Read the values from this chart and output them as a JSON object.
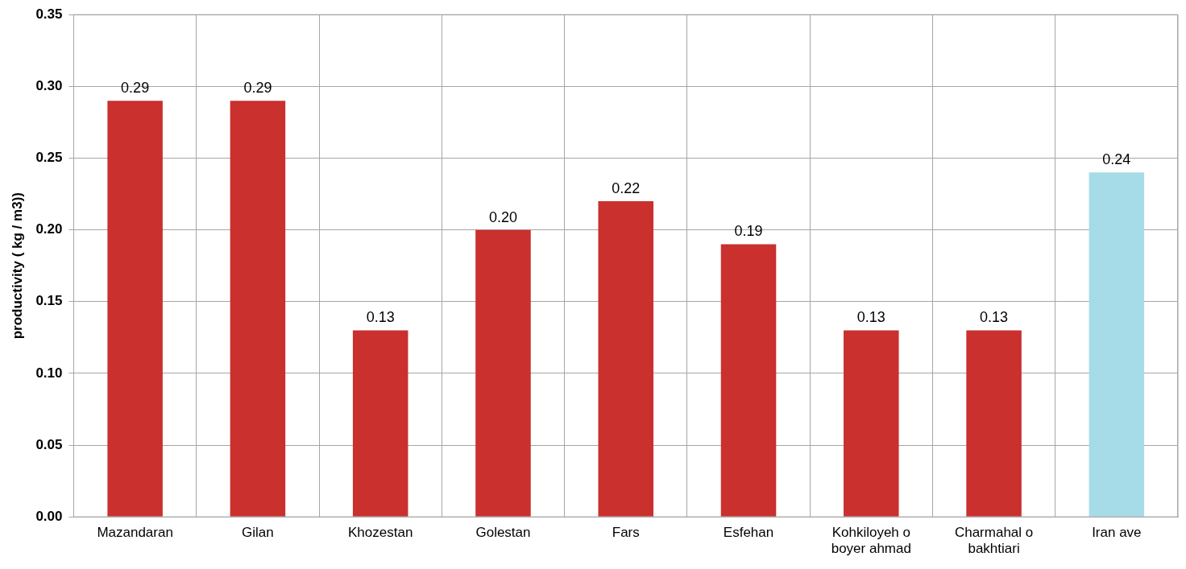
{
  "chart_data": {
    "type": "bar",
    "ylabel": "productivity ( kg / m3))",
    "categories": [
      "Mazandaran",
      "Gilan",
      "Khozestan",
      "Golestan",
      "Fars",
      "Esfehan",
      "Kohkiloyeh o boyer ahmad",
      "Charmahal o bakhtiari",
      "Iran ave"
    ],
    "values": [
      0.29,
      0.29,
      0.13,
      0.2,
      0.22,
      0.19,
      0.13,
      0.13,
      0.24
    ],
    "value_labels": [
      "0.29",
      "0.29",
      "0.13",
      "0.20",
      "0.22",
      "0.19",
      "0.13",
      "0.13",
      "0.24"
    ],
    "colors": [
      "#c9302e",
      "#c9302e",
      "#c9302e",
      "#c9302e",
      "#c9302e",
      "#c9302e",
      "#c9302e",
      "#c9302e",
      "#a6dbe8"
    ],
    "ylim": [
      0,
      0.35
    ],
    "yticks": [
      {
        "value": 0,
        "label": "0.00"
      },
      {
        "value": 0.05,
        "label": "0.05"
      },
      {
        "value": 0.1,
        "label": "0.10"
      },
      {
        "value": 0.15,
        "label": "0.15"
      },
      {
        "value": 0.2,
        "label": "0.20"
      },
      {
        "value": 0.25,
        "label": "0.25"
      },
      {
        "value": 0.3,
        "label": "0.30"
      },
      {
        "value": 0.35,
        "label": "0.35"
      }
    ],
    "grid": true,
    "legend": false
  }
}
